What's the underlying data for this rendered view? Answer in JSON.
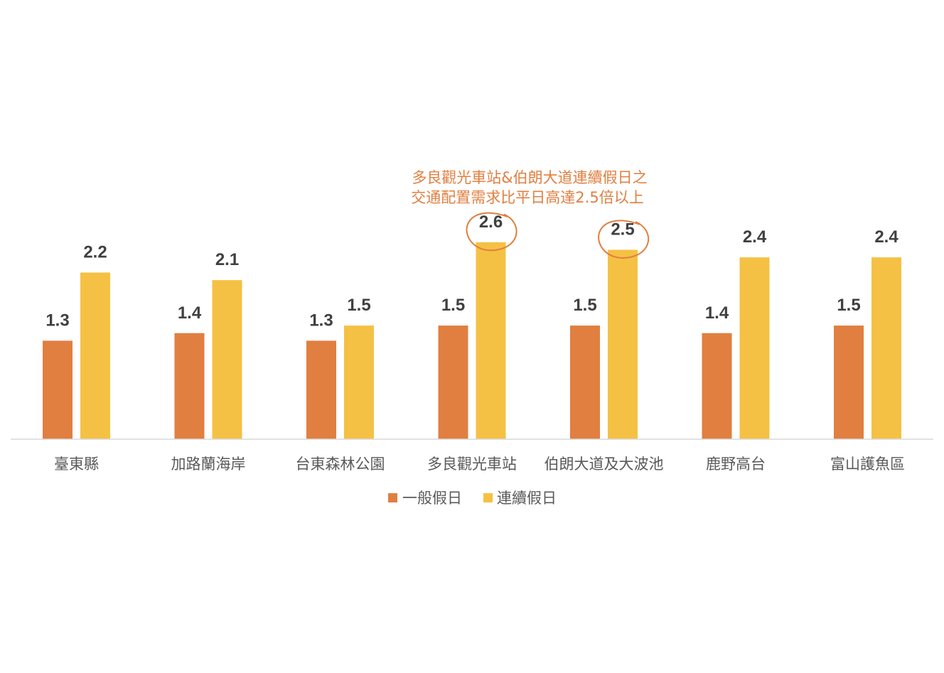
{
  "chart_data": {
    "type": "bar",
    "categories": [
      "臺東縣",
      "加路蘭海岸",
      "台東森林公園",
      "多良觀光車站",
      "伯朗大道及大波池",
      "鹿野高台",
      "富山護魚區"
    ],
    "series": [
      {
        "name": "一般假日",
        "values": [
          1.3,
          1.4,
          1.3,
          1.5,
          1.5,
          1.4,
          1.5
        ],
        "color": "#E07F40"
      },
      {
        "name": "連續假日",
        "values": [
          2.2,
          2.1,
          1.5,
          2.6,
          2.5,
          2.4,
          2.4
        ],
        "color": "#F5C144"
      }
    ],
    "annotation": {
      "lines": [
        "多良觀光車站&伯朗大道連續假日之",
        "交通配置需求比平日高達2.5倍以上"
      ],
      "color": "#E07F40"
    },
    "circled_categories": [
      "多良觀光車站",
      "伯朗大道及大波池"
    ],
    "legend_position": "bottom",
    "grid": false,
    "axis_color": "#D9D9D9"
  }
}
